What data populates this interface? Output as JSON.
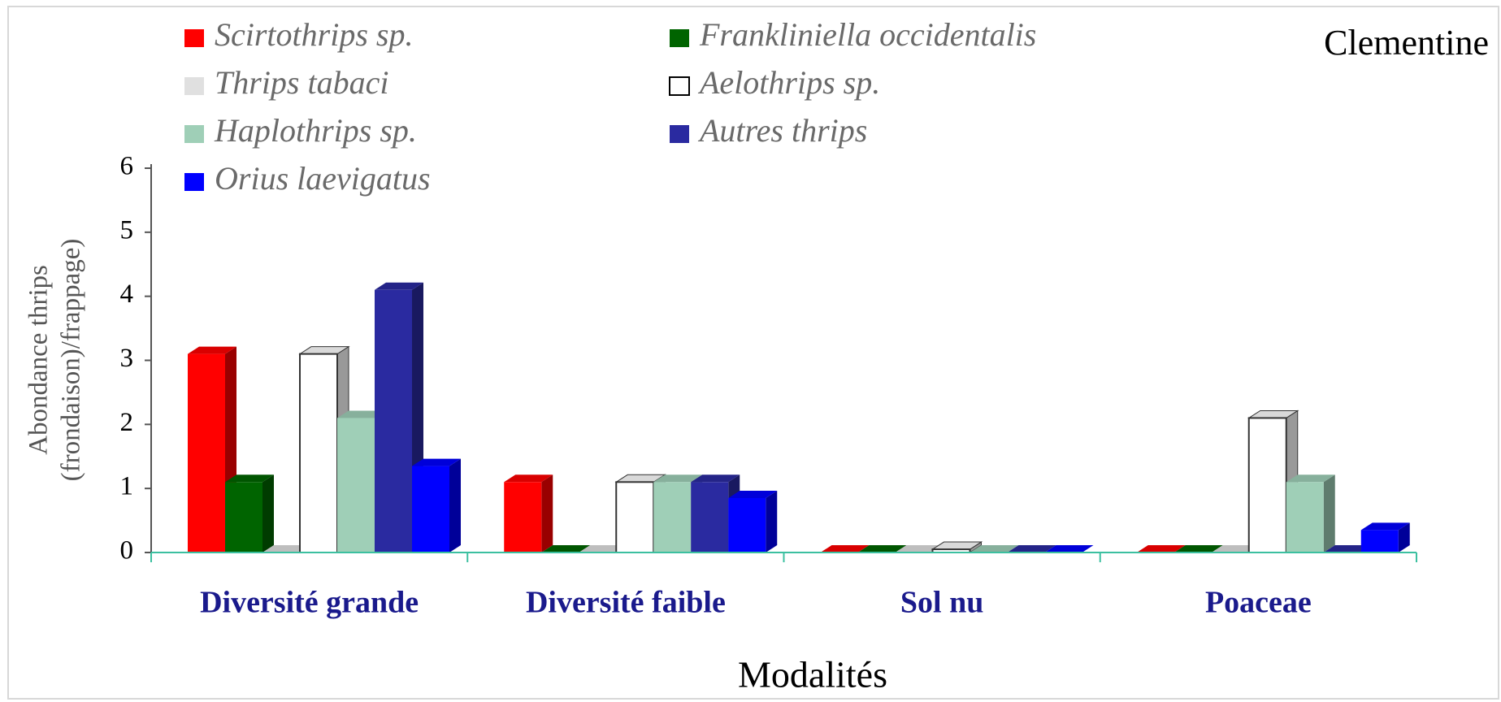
{
  "chart_data": {
    "type": "bar3d",
    "title": "Clementine",
    "ylabel": [
      "Abondance thrips",
      "(frondaison)/frappage)"
    ],
    "xlabel": "Modalités",
    "categories": [
      "Diversité grande",
      "Diversité faible",
      "Sol nu",
      "Poaceae"
    ],
    "series": [
      {
        "name": "Scirtothrips sp.",
        "color": "#ff0000",
        "values": [
          3.1,
          1.1,
          0,
          0
        ]
      },
      {
        "name": "Frankliniella occidentalis",
        "color": "#006400",
        "values": [
          1.1,
          0,
          0,
          0
        ]
      },
      {
        "name": "Thrips tabaci",
        "color": "#e0e0e0",
        "values": [
          0,
          0,
          0,
          0
        ]
      },
      {
        "name": "Aelothrips sp.",
        "color": "#ffffff",
        "values": [
          3.1,
          1.1,
          0.05,
          2.1
        ]
      },
      {
        "name": "Haplothrips sp.",
        "color": "#9fcfb7",
        "values": [
          2.1,
          1.1,
          0,
          1.1
        ]
      },
      {
        "name": "Autres thrips",
        "color": "#2a2aa0",
        "values": [
          4.1,
          1.1,
          0,
          0
        ]
      },
      {
        "name": "Orius laevigatus",
        "color": "#0000ff",
        "values": [
          1.35,
          0.85,
          0,
          0.35
        ]
      }
    ],
    "ylim": [
      0,
      6
    ],
    "yticks": [
      0,
      1,
      2,
      3,
      4,
      5,
      6
    ]
  }
}
